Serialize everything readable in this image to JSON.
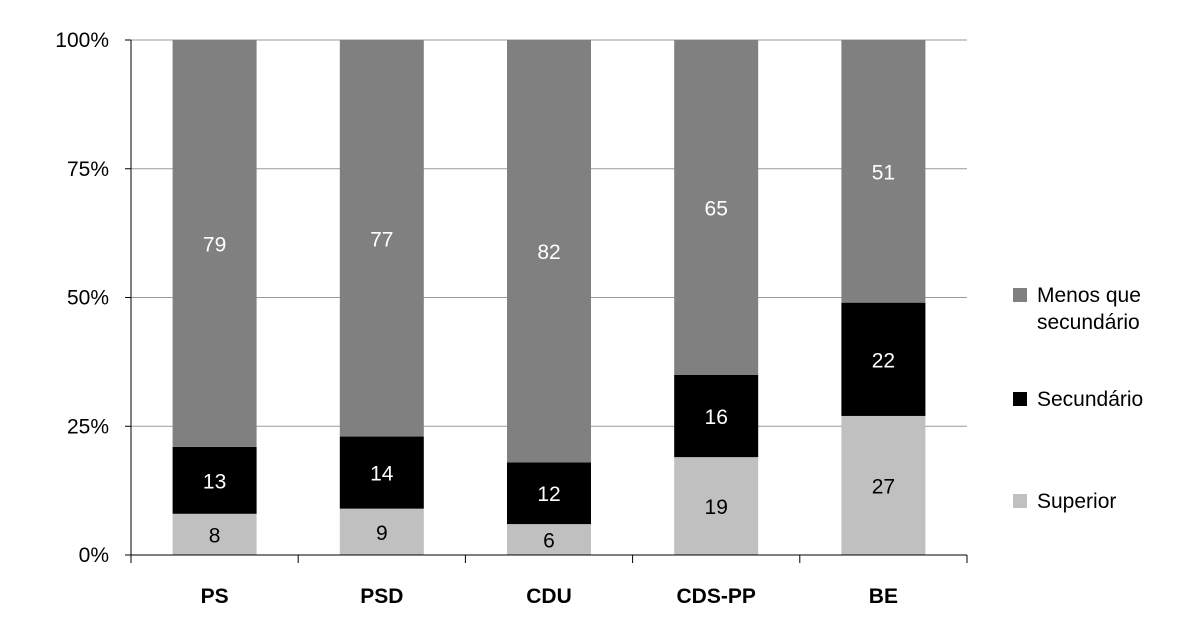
{
  "chart_data": {
    "type": "bar",
    "stacked": true,
    "percent_stacked": true,
    "categories": [
      "PS",
      "PSD",
      "CDU",
      "CDS-PP",
      "BE"
    ],
    "series": [
      {
        "name": "Superior",
        "color": "#c0c0c0",
        "label_color": "#000000",
        "values": [
          8,
          9,
          6,
          19,
          27
        ]
      },
      {
        "name": "Secundário",
        "color": "#000000",
        "label_color": "#ffffff",
        "values": [
          13,
          14,
          12,
          16,
          22
        ]
      },
      {
        "name": "Menos que secundário",
        "color": "#808080",
        "label_color": "#ffffff",
        "values": [
          79,
          77,
          82,
          65,
          51
        ]
      }
    ],
    "legend_order": [
      "Menos que secundário",
      "Secundário",
      "Superior"
    ],
    "yticks": [
      "0%",
      "25%",
      "50%",
      "75%",
      "100%"
    ],
    "ylim": [
      0,
      100
    ],
    "grid": true,
    "legend_position": "right"
  }
}
